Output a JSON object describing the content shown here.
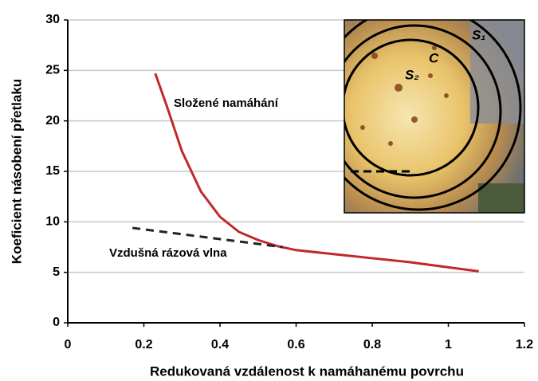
{
  "chart_data": {
    "type": "line",
    "x_label": "Redukovaná vzdálenost k namáhanému povrchu",
    "y_label": "Koeficient násobení přetlaku",
    "xlim": [
      0,
      1.2
    ],
    "xticks": [
      0,
      0.2,
      0.4,
      0.6,
      0.8,
      1.0,
      1.2
    ],
    "ylim": [
      0,
      30
    ],
    "yticks": [
      0,
      5,
      10,
      15,
      20,
      25,
      30
    ],
    "grid": true,
    "series": [
      {
        "name": "Složené namáhání",
        "color": "#c0282d",
        "line_style": "solid",
        "x": [
          0.23,
          0.26,
          0.3,
          0.35,
          0.4,
          0.45,
          0.5,
          0.55,
          0.6,
          0.7,
          0.8,
          0.9,
          1.0,
          1.08
        ],
        "values": [
          24.7,
          21.5,
          17,
          13,
          10.5,
          9,
          8.2,
          7.6,
          7.2,
          6.8,
          6.4,
          6.0,
          5.5,
          5.1
        ]
      },
      {
        "name": "Vzdušná rázová vlna",
        "color": "#222222",
        "line_style": "dashed",
        "x": [
          0.17,
          0.565
        ],
        "values": [
          9.4,
          7.5
        ]
      }
    ],
    "inset_labels": [
      "S₁",
      "C",
      "S₂"
    ]
  }
}
